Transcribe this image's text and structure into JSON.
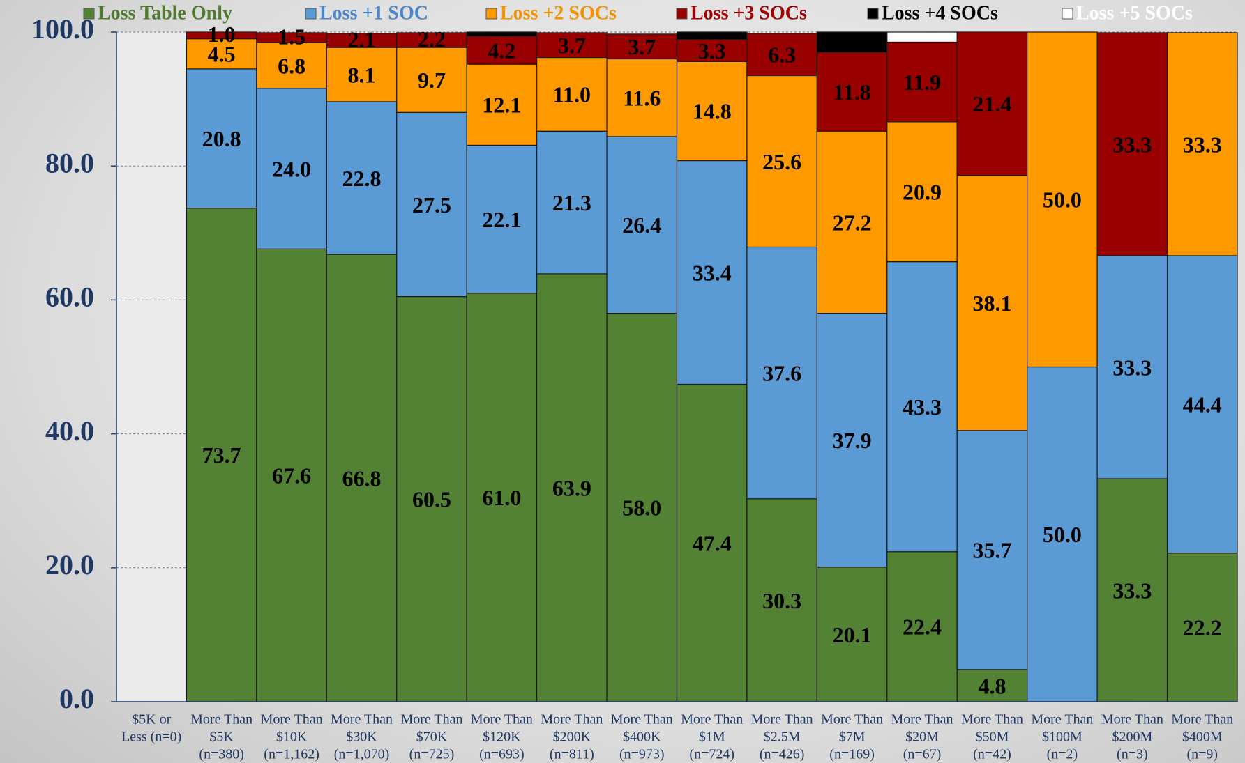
{
  "chart_data": {
    "type": "stacked_bar",
    "categories": [
      [
        "$5K or",
        "Less (n=0)"
      ],
      [
        "More Than",
        "$5K",
        "(n=380)"
      ],
      [
        "More Than",
        "$10K",
        "(n=1,162)"
      ],
      [
        "More Than",
        "$30K",
        "(n=1,070)"
      ],
      [
        "More Than",
        "$70K",
        "(n=725)"
      ],
      [
        "More Than",
        "$120K",
        "(n=693)"
      ],
      [
        "More Than",
        "$200K",
        "(n=811)"
      ],
      [
        "More Than",
        "$400K",
        "(n=973)"
      ],
      [
        "More Than",
        "$1M",
        "(n=724)"
      ],
      [
        "More Than",
        "$2.5M",
        "(n=426)"
      ],
      [
        "More Than",
        "$7M",
        "(n=169)"
      ],
      [
        "More Than",
        "$20M",
        "(n=67)"
      ],
      [
        "More Than",
        "$50M",
        "(n=42)"
      ],
      [
        "More Than",
        "$100M",
        "(n=2)"
      ],
      [
        "More Than",
        "$200M",
        "(n=3)"
      ],
      [
        "More Than",
        "$400M",
        "(n=9)"
      ]
    ],
    "series": [
      {
        "name": "Loss Table Only",
        "color": "#548235",
        "text_color": "#4e7a2e",
        "values": [
          null,
          73.7,
          67.6,
          66.8,
          60.5,
          61.0,
          63.9,
          58.0,
          47.4,
          30.3,
          20.1,
          22.4,
          4.8,
          0,
          33.3,
          22.2
        ],
        "value_labels": [
          null,
          "73.7",
          "67.6",
          "66.8",
          "60.5",
          "61.0",
          "63.9",
          "58.0",
          "47.4",
          "30.3",
          "20.1",
          "22.4",
          "4.8",
          null,
          "33.3",
          "22.2"
        ]
      },
      {
        "name": "Loss +1 SOC",
        "color": "#5b9bd5",
        "text_color": "#4a86c8",
        "values": [
          null,
          20.8,
          24.0,
          22.8,
          27.5,
          22.1,
          21.3,
          26.4,
          33.4,
          37.6,
          37.9,
          43.3,
          35.7,
          50.0,
          33.3,
          44.4
        ],
        "value_labels": [
          null,
          "20.8",
          "24.0",
          "22.8",
          "27.5",
          "22.1",
          "21.3",
          "26.4",
          "33.4",
          "37.6",
          "37.9",
          "43.3",
          "35.7",
          "50.0",
          "33.3",
          "44.4"
        ]
      },
      {
        "name": "Loss +2 SOCs",
        "color": "#ff9900",
        "text_color": "#f29200",
        "values": [
          null,
          4.5,
          6.8,
          8.1,
          9.7,
          12.1,
          11.0,
          11.6,
          14.8,
          25.6,
          27.2,
          20.9,
          38.1,
          50.0,
          0,
          33.3
        ],
        "value_labels": [
          null,
          "4.5",
          "6.8",
          "8.1",
          "9.7",
          "12.1",
          "11.0",
          "11.6",
          "14.8",
          "25.6",
          "27.2",
          "20.9",
          "38.1",
          "50.0",
          null,
          "33.3"
        ]
      },
      {
        "name": "Loss +3 SOCs",
        "color": "#990000",
        "text_color": "#a00000",
        "values": [
          null,
          1.0,
          1.5,
          2.1,
          2.2,
          4.2,
          3.7,
          3.7,
          3.3,
          6.3,
          11.8,
          11.9,
          21.4,
          0,
          33.3,
          0
        ],
        "value_labels": [
          null,
          "1.0",
          "1.5",
          "2.1",
          "2.2",
          "4.2",
          "3.7",
          "3.7",
          "3.3",
          "6.3",
          "11.8",
          "11.9",
          "21.4",
          null,
          "33.3",
          null
        ]
      },
      {
        "name": "Loss +4 SOCs",
        "color": "#000000",
        "text_color": "#000000",
        "values": [
          null,
          0,
          0,
          0,
          0,
          0.6,
          0,
          0,
          1.1,
          0,
          3.0,
          0,
          0,
          0,
          0,
          0
        ]
      },
      {
        "name": "Loss +5 SOCs",
        "color": "#ffffff",
        "text_color": "#ffffff",
        "values": [
          null,
          0,
          0,
          0,
          0,
          0,
          0,
          0,
          0,
          0,
          0,
          1.5,
          0,
          0,
          0,
          0
        ]
      }
    ],
    "ylim": [
      0,
      100
    ],
    "yticks": [
      {
        "value": 0,
        "label": "0.0"
      },
      {
        "value": 20,
        "label": "20.0"
      },
      {
        "value": 40,
        "label": "40.0"
      },
      {
        "value": 60,
        "label": "60.0"
      },
      {
        "value": 80,
        "label": "80.0"
      },
      {
        "value": 100,
        "label": "100.0"
      }
    ],
    "grid": true,
    "legend": "top"
  }
}
